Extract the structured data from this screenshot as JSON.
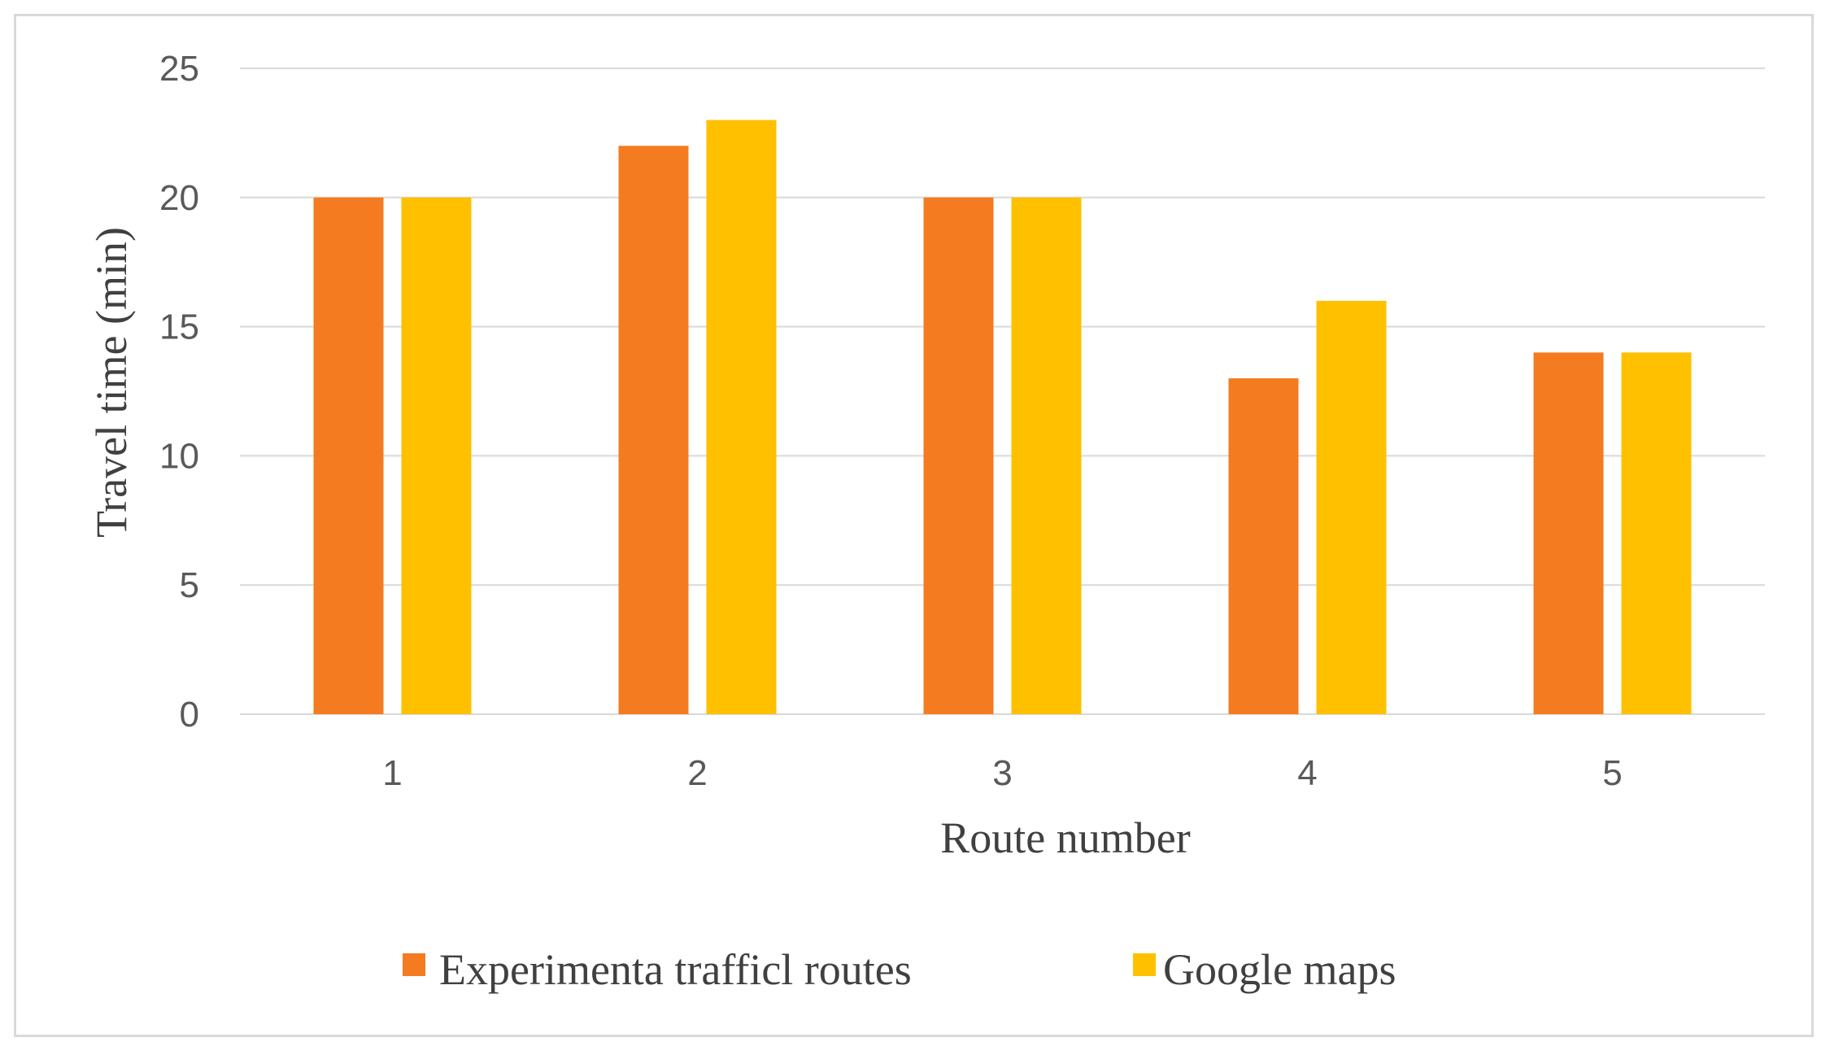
{
  "chart_data": {
    "type": "bar",
    "title": "",
    "xlabel": "Route number",
    "ylabel": "Travel time (min)",
    "categories": [
      "1",
      "2",
      "3",
      "4",
      "5"
    ],
    "series": [
      {
        "name": "Experimenta trafficl routes",
        "values": [
          20,
          22,
          20,
          13,
          14
        ],
        "color": "#F47B20"
      },
      {
        "name": "Google maps",
        "values": [
          20,
          23,
          20,
          16,
          14
        ],
        "color": "#FFC000"
      }
    ],
    "ylim": [
      0,
      25
    ],
    "yticks": [
      0,
      5,
      10,
      15,
      20,
      25
    ],
    "grid": true,
    "legend_position": "bottom"
  },
  "colors": {
    "grid": "#d9d9d9",
    "frame": "#d9d9d9"
  }
}
